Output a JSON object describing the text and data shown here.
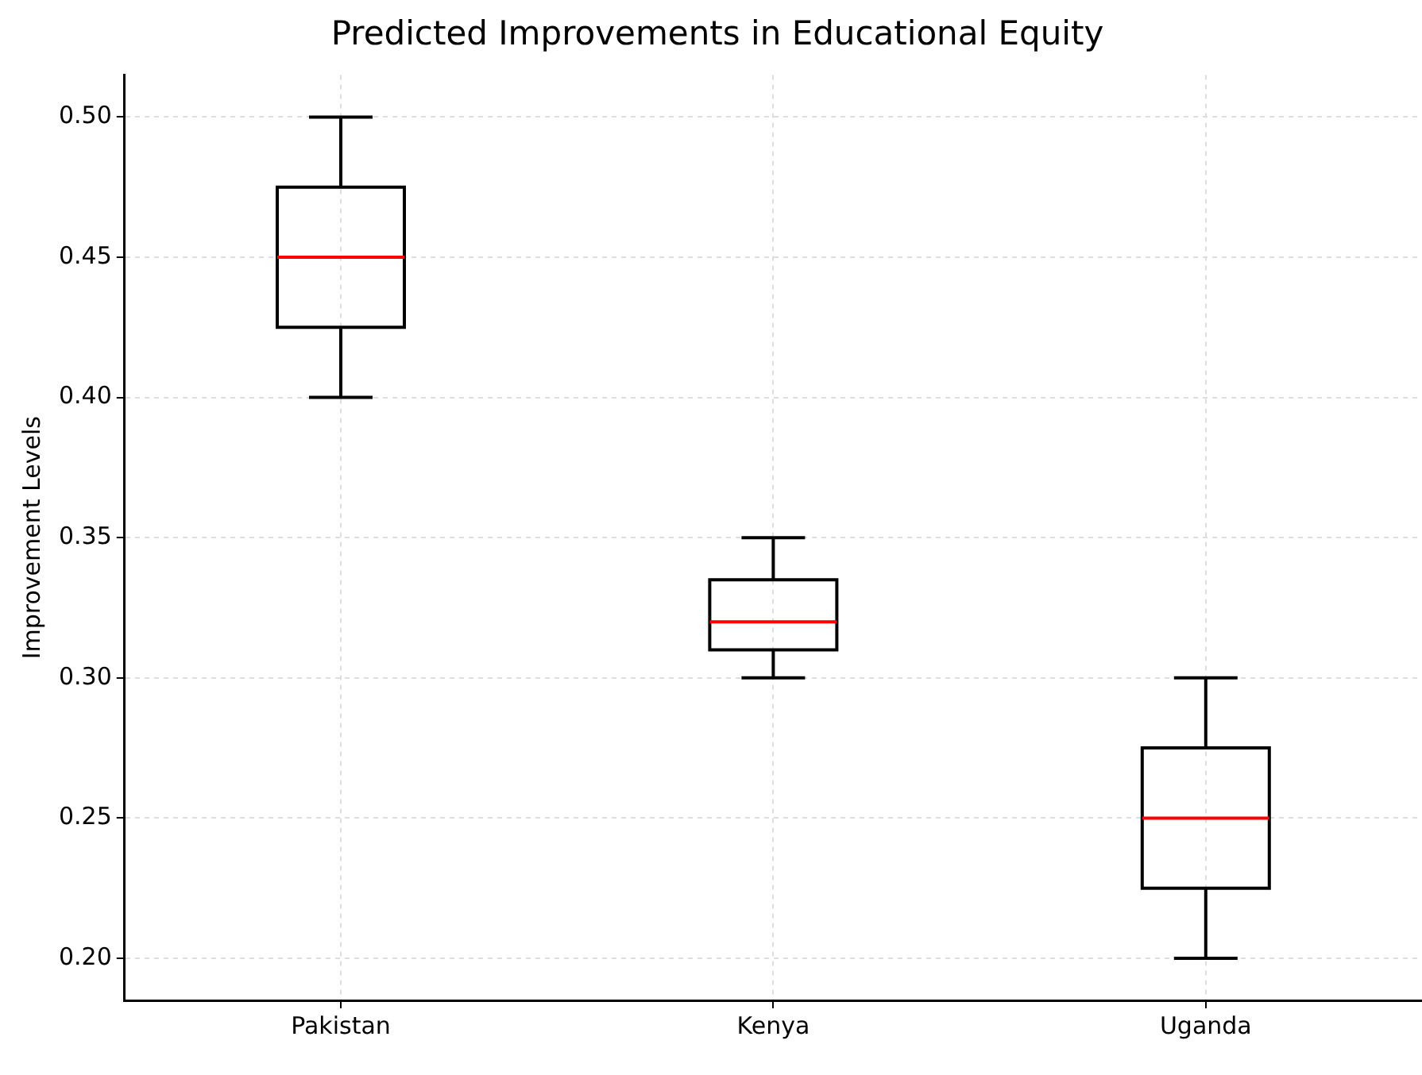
{
  "chart_data": {
    "type": "box",
    "title": "Predicted Improvements in Educational Equity",
    "ylabel": "Improvement Levels",
    "categories": [
      "Pakistan",
      "Kenya",
      "Uganda"
    ],
    "boxes": [
      {
        "low": 0.4,
        "q1": 0.425,
        "median": 0.45,
        "q3": 0.475,
        "high": 0.5
      },
      {
        "low": 0.3,
        "q1": 0.31,
        "median": 0.32,
        "q3": 0.335,
        "high": 0.35
      },
      {
        "low": 0.2,
        "q1": 0.225,
        "median": 0.25,
        "q3": 0.275,
        "high": 0.3
      }
    ],
    "color": "#000000",
    "ylim": [
      0.185,
      0.515
    ],
    "yticks": [
      {
        "value": 0.2,
        "label": "0.20"
      },
      {
        "value": 0.25,
        "label": "0.25"
      },
      {
        "value": 0.3,
        "label": "0.30"
      },
      {
        "value": 0.35,
        "label": "0.35"
      },
      {
        "value": 0.4,
        "label": "0.40"
      },
      {
        "value": 0.45,
        "label": "0.45"
      },
      {
        "value": 0.5,
        "label": "0.50"
      }
    ],
    "grid": true,
    "legend": false
  }
}
